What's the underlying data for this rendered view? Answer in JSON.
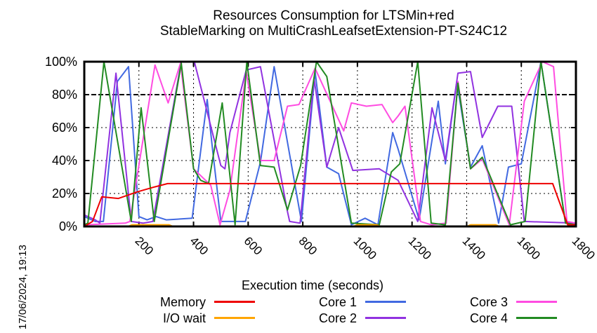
{
  "title": {
    "line1": "Resources Consumption for LTSMin+red",
    "line2": "StableMarking on MultiCrashLeafsetExtension-PT-S24C12"
  },
  "date_label": "17/06/2024, 19:13",
  "colors": {
    "background": "#ffffff",
    "axis": "#000000",
    "memory": "#ee0000",
    "io_wait": "#ffa500",
    "core1": "#4169e1",
    "core2": "#9132e0",
    "core3": "#ff4ce1",
    "core4": "#228b22"
  },
  "chart_data": {
    "type": "line",
    "title": "Resources Consumption for LTSMin+red StableMarking on MultiCrashLeafsetExtension-PT-S24C12",
    "xlabel": "Execution time (seconds)",
    "ylabel": "",
    "xlim": [
      0,
      1800
    ],
    "ylim": [
      0,
      100
    ],
    "xticks": [
      200,
      400,
      600,
      800,
      1000,
      1200,
      1400,
      1600,
      1800
    ],
    "xtick_labels": [
      "200",
      "400",
      "600",
      "800",
      "1000",
      "1200",
      "1400",
      "1600",
      "1800"
    ],
    "yticks": [
      0,
      20,
      40,
      60,
      80,
      100
    ],
    "ytick_labels": [
      "0%",
      "20%",
      "40%",
      "60%",
      "80%",
      "100%"
    ],
    "grid": true,
    "legend_position": "bottom",
    "draw_order": [
      "Core 1",
      "Core 2",
      "Core 3",
      "Core 4",
      "I/O wait",
      "Memory"
    ],
    "series": [
      {
        "name": "Memory",
        "color": "#ee0000",
        "points": [
          [
            0,
            0
          ],
          [
            30,
            3
          ],
          [
            64,
            18
          ],
          [
            125,
            17
          ],
          [
            195,
            21
          ],
          [
            258,
            24
          ],
          [
            305,
            26
          ],
          [
            1715,
            26
          ],
          [
            1770,
            1
          ],
          [
            1800,
            1
          ]
        ]
      },
      {
        "name": "I/O wait",
        "color": "#ffa500",
        "points": [
          [
            0,
            0
          ],
          [
            160,
            0
          ],
          [
            175,
            1
          ],
          [
            310,
            1
          ],
          [
            325,
            0
          ],
          [
            985,
            0
          ],
          [
            1000,
            1
          ],
          [
            1070,
            1
          ],
          [
            1085,
            0
          ],
          [
            1400,
            0
          ],
          [
            1415,
            1
          ],
          [
            1505,
            1
          ],
          [
            1520,
            0
          ],
          [
            1800,
            0
          ]
        ]
      },
      {
        "name": "Core 1",
        "color": "#4169e1",
        "points": [
          [
            0,
            6
          ],
          [
            40,
            3
          ],
          [
            70,
            3
          ],
          [
            121,
            88
          ],
          [
            162,
            97
          ],
          [
            200,
            6
          ],
          [
            230,
            4
          ],
          [
            263,
            6
          ],
          [
            300,
            4
          ],
          [
            395,
            5
          ],
          [
            450,
            77
          ],
          [
            470,
            46
          ],
          [
            500,
            3
          ],
          [
            590,
            3
          ],
          [
            645,
            39
          ],
          [
            695,
            97
          ],
          [
            795,
            3
          ],
          [
            845,
            94
          ],
          [
            888,
            36
          ],
          [
            931,
            32
          ],
          [
            978,
            1
          ],
          [
            1028,
            5
          ],
          [
            1075,
            1
          ],
          [
            1129,
            57
          ],
          [
            1149,
            47
          ],
          [
            1226,
            4
          ],
          [
            1296,
            76
          ],
          [
            1322,
            38
          ],
          [
            1364,
            88
          ],
          [
            1414,
            36
          ],
          [
            1457,
            49
          ],
          [
            1517,
            2
          ],
          [
            1553,
            36
          ],
          [
            1600,
            38
          ],
          [
            1672,
            100
          ],
          [
            1762,
            2
          ],
          [
            1800,
            1
          ]
        ]
      },
      {
        "name": "Core 2",
        "color": "#9132e0",
        "points": [
          [
            0,
            7
          ],
          [
            40,
            4
          ],
          [
            57,
            2
          ],
          [
            116,
            93
          ],
          [
            172,
            3
          ],
          [
            215,
            2
          ],
          [
            251,
            3
          ],
          [
            355,
            100
          ],
          [
            403,
            100
          ],
          [
            500,
            37
          ],
          [
            515,
            35
          ],
          [
            533,
            57
          ],
          [
            593,
            95
          ],
          [
            645,
            97
          ],
          [
            744,
            9
          ],
          [
            752,
            3
          ],
          [
            790,
            2
          ],
          [
            841,
            90
          ],
          [
            888,
            36
          ],
          [
            931,
            60
          ],
          [
            983,
            34
          ],
          [
            1080,
            35
          ],
          [
            1149,
            28
          ],
          [
            1221,
            3
          ],
          [
            1273,
            72
          ],
          [
            1322,
            40
          ],
          [
            1368,
            93
          ],
          [
            1414,
            94
          ],
          [
            1457,
            54
          ],
          [
            1514,
            73
          ],
          [
            1565,
            73
          ],
          [
            1611,
            3
          ],
          [
            1800,
            2
          ]
        ]
      },
      {
        "name": "Core 3",
        "color": "#ff4ce1",
        "points": [
          [
            0,
            1
          ],
          [
            150,
            2
          ],
          [
            167,
            3
          ],
          [
            259,
            98
          ],
          [
            307,
            75
          ],
          [
            352,
            99
          ],
          [
            400,
            35
          ],
          [
            463,
            25
          ],
          [
            497,
            1
          ],
          [
            533,
            22
          ],
          [
            593,
            94
          ],
          [
            645,
            40
          ],
          [
            695,
            40
          ],
          [
            744,
            73
          ],
          [
            786,
            74
          ],
          [
            845,
            96
          ],
          [
            950,
            58
          ],
          [
            978,
            75
          ],
          [
            1033,
            73
          ],
          [
            1090,
            74
          ],
          [
            1129,
            63
          ],
          [
            1149,
            67
          ],
          [
            1174,
            73
          ],
          [
            1231,
            3
          ],
          [
            1270,
            1
          ],
          [
            1325,
            2
          ],
          [
            1368,
            88
          ],
          [
            1414,
            35
          ],
          [
            1457,
            41
          ],
          [
            1556,
            1
          ],
          [
            1611,
            76
          ],
          [
            1677,
            100
          ],
          [
            1718,
            97
          ],
          [
            1767,
            3
          ],
          [
            1800,
            2
          ]
        ]
      },
      {
        "name": "Core 4",
        "color": "#228b22",
        "points": [
          [
            0,
            1
          ],
          [
            13,
            2
          ],
          [
            72,
            100
          ],
          [
            172,
            3
          ],
          [
            208,
            72
          ],
          [
            256,
            3
          ],
          [
            355,
            99
          ],
          [
            400,
            35
          ],
          [
            426,
            28
          ],
          [
            455,
            26
          ],
          [
            505,
            75
          ],
          [
            552,
            1
          ],
          [
            595,
            100
          ],
          [
            645,
            37
          ],
          [
            695,
            36
          ],
          [
            744,
            10
          ],
          [
            792,
            37
          ],
          [
            850,
            100
          ],
          [
            888,
            91
          ],
          [
            978,
            2
          ],
          [
            1080,
            1
          ],
          [
            1124,
            33
          ],
          [
            1155,
            38
          ],
          [
            1221,
            100
          ],
          [
            1270,
            2
          ],
          [
            1322,
            1
          ],
          [
            1368,
            87
          ],
          [
            1414,
            35
          ],
          [
            1457,
            42
          ],
          [
            1560,
            1
          ],
          [
            1614,
            3
          ],
          [
            1672,
            100
          ],
          [
            1762,
            2
          ],
          [
            1800,
            1
          ]
        ]
      }
    ]
  },
  "legend": {
    "entries": [
      {
        "label": "Memory",
        "series": "Memory"
      },
      {
        "label": "I/O wait",
        "series": "I/O wait"
      },
      {
        "label": "Core 1",
        "series": "Core 1"
      },
      {
        "label": "Core 2",
        "series": "Core 2"
      },
      {
        "label": "Core 3",
        "series": "Core 3"
      },
      {
        "label": "Core 4",
        "series": "Core 4"
      }
    ]
  }
}
